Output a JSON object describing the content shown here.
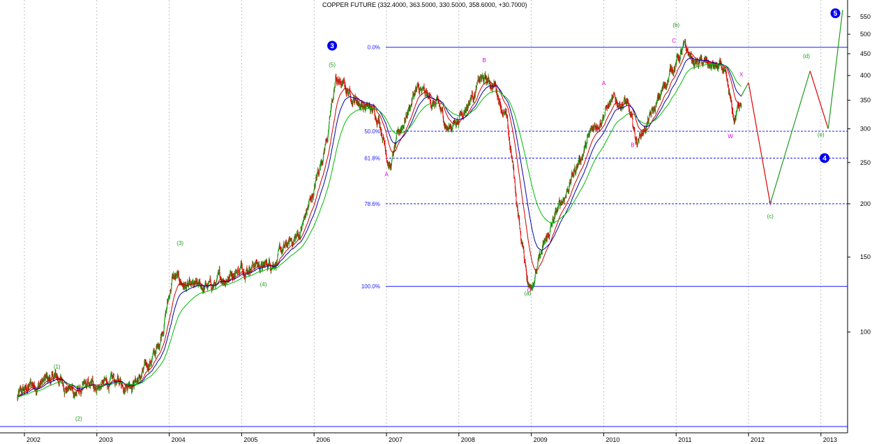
{
  "chart_data": {
    "type": "candlestick",
    "title": "COPPER FUTURE (332.4000, 363.5000, 330.5000, 358.6000, +30.7000)",
    "y_scale": "log",
    "ylim": [
      58,
      575
    ],
    "y_ticks": [
      550,
      500,
      450,
      400,
      350,
      300,
      250,
      200,
      150,
      100
    ],
    "x_ticks": [
      "2002",
      "2003",
      "2004",
      "2005",
      "2006",
      "2007",
      "2008",
      "2009",
      "2010",
      "2011",
      "2012",
      "2013"
    ],
    "grid": "vertical dotted at year boundaries",
    "colors": {
      "up": "#1a9a1a",
      "down": "#e00000",
      "fib": "#1a1aff",
      "ma_red": "#cc0000",
      "ma_blue": "#0000aa",
      "ma_green": "#00bb00",
      "wave_green": "#1a9a1a",
      "wave_magenta": "#dd00dd"
    },
    "price_path": [
      {
        "t": 2001.9,
        "v": 70
      },
      {
        "t": 2002.1,
        "v": 75
      },
      {
        "t": 2002.45,
        "v": 78
      },
      {
        "t": 2002.7,
        "v": 72
      },
      {
        "t": 2003.0,
        "v": 75
      },
      {
        "t": 2003.3,
        "v": 76
      },
      {
        "t": 2003.6,
        "v": 78
      },
      {
        "t": 2003.85,
        "v": 92
      },
      {
        "t": 2004.05,
        "v": 135
      },
      {
        "t": 2004.3,
        "v": 125
      },
      {
        "t": 2004.6,
        "v": 128
      },
      {
        "t": 2004.9,
        "v": 140
      },
      {
        "t": 2005.2,
        "v": 146
      },
      {
        "t": 2005.3,
        "v": 142
      },
      {
        "t": 2005.5,
        "v": 150
      },
      {
        "t": 2005.8,
        "v": 170
      },
      {
        "t": 2006.0,
        "v": 215
      },
      {
        "t": 2006.2,
        "v": 300
      },
      {
        "t": 2006.3,
        "v": 390
      },
      {
        "t": 2006.6,
        "v": 350
      },
      {
        "t": 2006.9,
        "v": 320
      },
      {
        "t": 2007.05,
        "v": 245
      },
      {
        "t": 2007.2,
        "v": 300
      },
      {
        "t": 2007.4,
        "v": 370
      },
      {
        "t": 2007.7,
        "v": 340
      },
      {
        "t": 2007.85,
        "v": 300
      },
      {
        "t": 2008.0,
        "v": 320
      },
      {
        "t": 2008.3,
        "v": 390
      },
      {
        "t": 2008.5,
        "v": 380
      },
      {
        "t": 2008.65,
        "v": 320
      },
      {
        "t": 2008.75,
        "v": 240
      },
      {
        "t": 2008.85,
        "v": 170
      },
      {
        "t": 2008.97,
        "v": 128
      },
      {
        "t": 2009.1,
        "v": 145
      },
      {
        "t": 2009.3,
        "v": 180
      },
      {
        "t": 2009.6,
        "v": 240
      },
      {
        "t": 2009.9,
        "v": 310
      },
      {
        "t": 2010.05,
        "v": 340
      },
      {
        "t": 2010.3,
        "v": 350
      },
      {
        "t": 2010.45,
        "v": 280
      },
      {
        "t": 2010.7,
        "v": 330
      },
      {
        "t": 2010.95,
        "v": 420
      },
      {
        "t": 2011.1,
        "v": 460
      },
      {
        "t": 2011.25,
        "v": 430
      },
      {
        "t": 2011.5,
        "v": 420
      },
      {
        "t": 2011.65,
        "v": 410
      },
      {
        "t": 2011.8,
        "v": 310
      },
      {
        "t": 2011.9,
        "v": 358
      }
    ],
    "fib_levels": [
      {
        "label": "0.0%",
        "value": 466
      },
      {
        "label": "50.0%",
        "value": 296
      },
      {
        "label": "61.8%",
        "value": 256
      },
      {
        "label": "78.6%",
        "value": 200
      },
      {
        "label": "100.0%",
        "value": 128
      }
    ],
    "floor_line": {
      "value": 60
    },
    "projection": [
      {
        "t": 2011.9,
        "v": 358
      },
      {
        "t": 2012.0,
        "v": 385
      },
      {
        "t": 2012.3,
        "v": 200
      },
      {
        "t": 2012.85,
        "v": 410
      },
      {
        "t": 2013.1,
        "v": 300
      },
      {
        "t": 2013.3,
        "v": 570
      }
    ],
    "wave_labels": [
      {
        "text": "(1)",
        "t": 2002.45,
        "v": 82,
        "color": "green"
      },
      {
        "text": "(2)",
        "t": 2002.75,
        "v": 62,
        "color": "green"
      },
      {
        "text": "(3)",
        "t": 2004.15,
        "v": 160,
        "color": "green"
      },
      {
        "text": "(4)",
        "t": 2005.3,
        "v": 128,
        "color": "green"
      },
      {
        "text": "(5)",
        "t": 2006.25,
        "v": 420,
        "color": "green"
      },
      {
        "text": "(a)",
        "t": 2008.95,
        "v": 122,
        "color": "green"
      },
      {
        "text": "(b)",
        "t": 2011.0,
        "v": 520,
        "color": "green"
      },
      {
        "text": "(c)",
        "t": 2012.3,
        "v": 185,
        "color": "green"
      },
      {
        "text": "(d)",
        "t": 2012.8,
        "v": 440,
        "color": "green"
      },
      {
        "text": "(e)",
        "t": 2013.0,
        "v": 288,
        "color": "green"
      },
      {
        "text": "A",
        "t": 2007.0,
        "v": 232,
        "color": "magenta"
      },
      {
        "text": "B",
        "t": 2008.35,
        "v": 430,
        "color": "magenta"
      },
      {
        "text": "C",
        "t": 2008.97,
        "v": 124,
        "color": "magenta"
      },
      {
        "text": "A",
        "t": 2010.0,
        "v": 380,
        "color": "magenta"
      },
      {
        "text": "B",
        "t": 2010.4,
        "v": 272,
        "color": "magenta"
      },
      {
        "text": "C",
        "t": 2010.97,
        "v": 478,
        "color": "magenta"
      },
      {
        "text": "X",
        "t": 2011.9,
        "v": 398,
        "color": "magenta"
      },
      {
        "text": "W",
        "t": 2011.75,
        "v": 285,
        "color": "magenta"
      },
      {
        "text": "Y",
        "t": 2012.3,
        "v": 198,
        "color": "magenta"
      }
    ],
    "wave_badges": [
      {
        "text": "3",
        "t": 2006.25,
        "v": 470
      },
      {
        "text": "4",
        "t": 2013.05,
        "v": 256
      },
      {
        "text": "5",
        "t": 2013.2,
        "v": 560
      }
    ]
  }
}
